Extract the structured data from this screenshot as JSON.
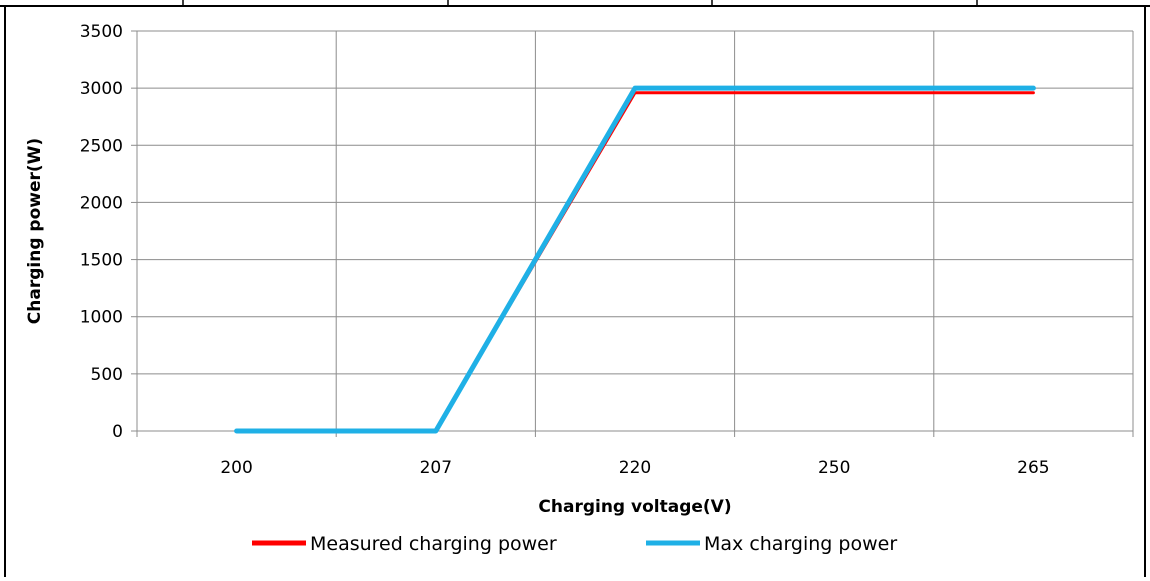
{
  "chart_data": {
    "type": "line",
    "xlabel": "Charging voltage(V)",
    "ylabel": "Charging power(W)",
    "categories": [
      "200",
      "207",
      "220",
      "250",
      "265"
    ],
    "x_position_labels": [
      200,
      207,
      220,
      250,
      265
    ],
    "y_ticks": [
      "0",
      "500",
      "1000",
      "1500",
      "2000",
      "2500",
      "3000",
      "3500"
    ],
    "ylim": [
      0,
      3500
    ],
    "grid": "both",
    "legend": "bottom",
    "series": [
      {
        "name": "Measured charging power",
        "color": "#ff0000",
        "points": [
          {
            "x": 200,
            "y": 0
          },
          {
            "x": 207,
            "y": 0
          },
          {
            "x": 220,
            "y": 2960
          },
          {
            "x": 250,
            "y": 2960
          },
          {
            "x": 265,
            "y": 2960
          }
        ]
      },
      {
        "name": "Max charging power",
        "color": "#1fb0e6",
        "points": [
          {
            "x": 200,
            "y": 0
          },
          {
            "x": 207,
            "y": 0
          },
          {
            "x": 220,
            "y": 3000
          },
          {
            "x": 250,
            "y": 3000
          },
          {
            "x": 265,
            "y": 3000
          }
        ]
      }
    ]
  }
}
